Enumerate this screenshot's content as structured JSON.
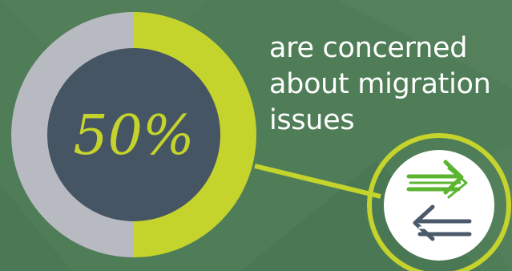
{
  "chart_data": {
    "type": "pie",
    "values": [
      50,
      50
    ],
    "labels": [
      "50%",
      ""
    ],
    "center_label": "50%",
    "caption_lines": [
      "are concerned",
      "about migration",
      "issues"
    ],
    "colors": {
      "background": "#4f7d57",
      "highlight": "#c5d42c",
      "remainder": "#b8bac2",
      "center": "#465563",
      "center_text": "#c5d42c",
      "caption_text": "#ffffff",
      "icon_arrow_green": "#5cb531",
      "icon_arrow_gray": "#4a5a6a",
      "icon_bg": "#ffffff"
    }
  },
  "icon": {
    "name": "swap-arrows-icon"
  }
}
